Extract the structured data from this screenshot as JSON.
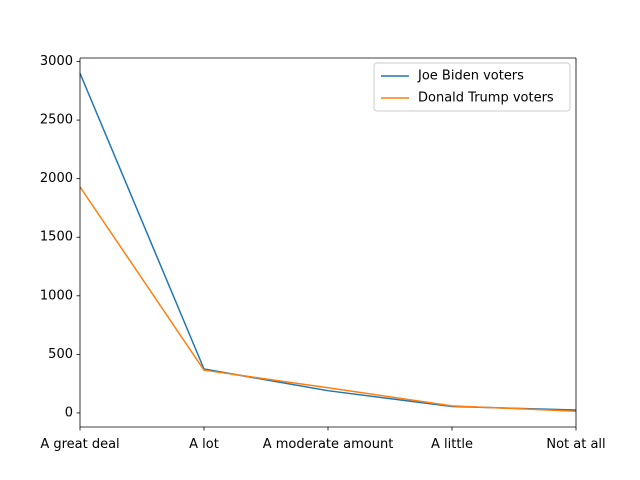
{
  "chart_data": {
    "type": "line",
    "categories": [
      "A great deal",
      "A lot",
      "A moderate amount",
      "A little",
      "Not at all"
    ],
    "series": [
      {
        "name": "Joe Biden voters",
        "color": "#1f77b4",
        "values": [
          2900,
          375,
          190,
          55,
          25
        ]
      },
      {
        "name": "Donald Trump voters",
        "color": "#ff7f0e",
        "values": [
          1930,
          365,
          215,
          60,
          15
        ]
      }
    ],
    "title": "",
    "xlabel": "",
    "ylabel": "",
    "ylim": [
      -120,
      3030
    ],
    "yticks": [
      0,
      500,
      1000,
      1500,
      2000,
      2500,
      3000
    ],
    "grid": false,
    "legend_position": "upper right"
  }
}
